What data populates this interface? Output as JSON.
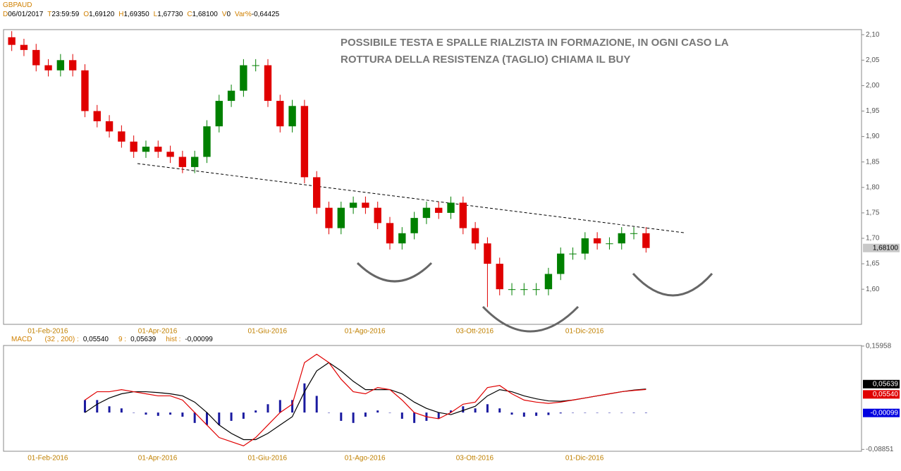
{
  "chart_data": [
    {
      "type": "candlestick",
      "title": "GBPAUD",
      "header": [
        {
          "key": "D",
          "value": "06/01/2017"
        },
        {
          "key": "T",
          "value": "23:59:59"
        },
        {
          "key": "O",
          "value": "1,69120"
        },
        {
          "key": "H",
          "value": "1,69350"
        },
        {
          "key": "L",
          "value": "1,67730"
        },
        {
          "key": "C",
          "value": "1,68100"
        },
        {
          "key": "V",
          "value": "0"
        },
        {
          "key": "Var%",
          "value": "-0,64425"
        }
      ],
      "annotation": [
        "POSSIBILE TESTA E SPALLE RIALZISTA IN FORMAZIONE, IN OGNI CASO LA",
        "ROTTURA DELLA RESISTENZA (TAGLIO) CHIAMA IL BUY"
      ],
      "categories": [
        null,
        null,
        null,
        null,
        "01-Feb-2016",
        null,
        null,
        null,
        null,
        null,
        null,
        null,
        null,
        "01-Apr-2016",
        null,
        null,
        null,
        null,
        null,
        null,
        null,
        null,
        "01-Giu-2016",
        null,
        null,
        null,
        null,
        null,
        null,
        null,
        "01-Ago-2016",
        null,
        null,
        null,
        null,
        null,
        null,
        null,
        null,
        "03-Ott-2016",
        null,
        null,
        null,
        null,
        null,
        null,
        null,
        null,
        "01-Dic-2016",
        null,
        null,
        null,
        null
      ],
      "open": [
        2.095,
        2.08,
        2.07,
        2.04,
        2.03,
        2.05,
        2.03,
        1.95,
        1.93,
        1.91,
        1.89,
        1.87,
        1.88,
        1.87,
        1.86,
        1.84,
        1.86,
        1.92,
        1.97,
        1.99,
        2.04,
        2.04,
        1.97,
        1.92,
        1.96,
        1.82,
        1.76,
        1.72,
        1.76,
        1.77,
        1.76,
        1.73,
        1.69,
        1.71,
        1.74,
        1.76,
        1.75,
        1.77,
        1.72,
        1.69,
        1.65,
        1.6,
        1.6,
        1.6,
        1.6,
        1.63,
        1.67,
        1.67,
        1.7,
        1.69,
        1.69,
        1.71,
        1.71
      ],
      "high": [
        2.107,
        2.092,
        2.082,
        2.052,
        2.062,
        2.062,
        2.042,
        1.962,
        1.942,
        1.922,
        1.902,
        1.892,
        1.892,
        1.882,
        1.872,
        1.872,
        1.932,
        1.982,
        2.002,
        2.052,
        2.052,
        2.052,
        1.982,
        1.972,
        1.972,
        1.832,
        1.772,
        1.772,
        1.782,
        1.782,
        1.772,
        1.742,
        1.722,
        1.752,
        1.772,
        1.772,
        1.782,
        1.782,
        1.732,
        1.702,
        1.662,
        1.612,
        1.612,
        1.612,
        1.642,
        1.682,
        1.682,
        1.712,
        1.712,
        1.702,
        1.722,
        1.722,
        1.722
      ],
      "low": [
        2.068,
        2.058,
        2.028,
        2.018,
        2.018,
        2.018,
        1.938,
        1.918,
        1.898,
        1.878,
        1.858,
        1.858,
        1.858,
        1.848,
        1.828,
        1.828,
        1.848,
        1.908,
        1.958,
        1.978,
        2.028,
        1.958,
        1.908,
        1.908,
        1.808,
        1.748,
        1.708,
        1.708,
        1.748,
        1.748,
        1.718,
        1.678,
        1.678,
        1.698,
        1.728,
        1.738,
        1.738,
        1.708,
        1.678,
        1.565,
        1.588,
        1.588,
        1.588,
        1.588,
        1.588,
        1.618,
        1.658,
        1.658,
        1.678,
        1.678,
        1.678,
        1.698,
        1.672
      ],
      "close": [
        2.08,
        2.07,
        2.04,
        2.03,
        2.05,
        2.03,
        1.95,
        1.93,
        1.91,
        1.89,
        1.87,
        1.88,
        1.87,
        1.86,
        1.84,
        1.86,
        1.92,
        1.97,
        1.99,
        2.04,
        2.04,
        1.97,
        1.92,
        1.96,
        1.82,
        1.76,
        1.72,
        1.76,
        1.77,
        1.76,
        1.73,
        1.69,
        1.71,
        1.74,
        1.76,
        1.75,
        1.77,
        1.72,
        1.69,
        1.65,
        1.6,
        1.6,
        1.6,
        1.6,
        1.63,
        1.67,
        1.67,
        1.7,
        1.69,
        1.69,
        1.71,
        1.71,
        1.681
      ],
      "close_labels": [
        null,
        null,
        null,
        null,
        null,
        null,
        null,
        null,
        null,
        null,
        null,
        null,
        null,
        null,
        null,
        null,
        null,
        null,
        null,
        null,
        null,
        null,
        null,
        null,
        null,
        null,
        null,
        null,
        null,
        null,
        null,
        null,
        null,
        null,
        null,
        null,
        null,
        null,
        null,
        null,
        null,
        null,
        null,
        null,
        null,
        null,
        null,
        null,
        null,
        null,
        null,
        null,
        "1,68100"
      ],
      "up_color": "#008000",
      "down_color": "#e00000",
      "ylim": [
        1.531,
        2.11
      ],
      "yticks": [
        {
          "value": 1.6,
          "label": "1,60"
        },
        {
          "value": 1.65,
          "label": "1,65"
        },
        {
          "value": 1.7,
          "label": "1,70"
        },
        {
          "value": 1.75,
          "label": "1,75"
        },
        {
          "value": 1.8,
          "label": "1,80"
        },
        {
          "value": 1.85,
          "label": "1,85"
        },
        {
          "value": 1.9,
          "label": "1,90"
        },
        {
          "value": 1.95,
          "label": "1,95"
        },
        {
          "value": 2.0,
          "label": "2,00"
        },
        {
          "value": 2.05,
          "label": "2,05"
        },
        {
          "value": 2.1,
          "label": "2,10"
        }
      ]
    },
    {
      "type": "line",
      "title": "MACD",
      "header": [
        "(32 , 200) :",
        "0,05540",
        "9 :",
        "0,05639",
        "hist :",
        "-0,00099"
      ],
      "categories": [
        null,
        null,
        null,
        null,
        "01-Feb-2016",
        null,
        null,
        null,
        null,
        null,
        null,
        null,
        null,
        "01-Apr-2016",
        null,
        null,
        null,
        null,
        null,
        null,
        null,
        null,
        "01-Giu-2016",
        null,
        null,
        null,
        null,
        null,
        null,
        null,
        "01-Ago-2016",
        null,
        null,
        null,
        null,
        null,
        null,
        null,
        null,
        "03-Ott-2016",
        null,
        null,
        null,
        null,
        null,
        null,
        null,
        null,
        "01-Dic-2016",
        null,
        null,
        null,
        null
      ],
      "series": [
        {
          "kind": "bar",
          "color": "#1a1aa0",
          "label_bg": "#0000e0",
          "values": [
            null,
            null,
            null,
            null,
            null,
            null,
            0.03,
            0.03,
            0.015,
            0.01,
            0,
            -0.005,
            -0.008,
            -0.005,
            -0.01,
            -0.025,
            -0.03,
            -0.03,
            -0.02,
            -0.015,
            0.005,
            0.02,
            0.03,
            0.03,
            0.07,
            0.04,
            0,
            -0.02,
            -0.025,
            -0.01,
            0.005,
            0,
            -0.015,
            -0.025,
            -0.02,
            -0.015,
            0.005,
            0.015,
            0.01,
            0.02,
            0.01,
            -0.005,
            -0.01,
            -0.008,
            -0.006,
            -0.002,
            0,
            0,
            0,
            0,
            0,
            -0.001,
            -0.00099
          ],
          "value_labels": [
            null,
            null,
            null,
            null,
            null,
            null,
            null,
            null,
            null,
            null,
            null,
            null,
            null,
            null,
            null,
            null,
            null,
            null,
            null,
            null,
            null,
            null,
            null,
            null,
            null,
            null,
            null,
            null,
            null,
            null,
            null,
            null,
            null,
            null,
            null,
            null,
            null,
            null,
            null,
            null,
            null,
            null,
            null,
            null,
            null,
            null,
            null,
            null,
            null,
            null,
            null,
            null,
            "-0,00099"
          ]
        },
        {
          "kind": "line",
          "color": "#000000",
          "label_bg": "#000000",
          "values": [
            null,
            null,
            null,
            null,
            null,
            null,
            0,
            0.02,
            0.035,
            0.045,
            0.05,
            0.05,
            0.048,
            0.045,
            0.04,
            0.025,
            0,
            -0.03,
            -0.05,
            -0.065,
            -0.065,
            -0.05,
            -0.03,
            -0.01,
            0.05,
            0.1,
            0.12,
            0.1,
            0.075,
            0.055,
            0.055,
            0.055,
            0.045,
            0.025,
            0.01,
            0,
            -0.005,
            0.005,
            0.015,
            0.04,
            0.055,
            0.05,
            0.04,
            0.033,
            0.028,
            0.027,
            0.03,
            0.035,
            0.04,
            0.045,
            0.05,
            0.054,
            0.05639
          ],
          "value_labels": [
            null,
            null,
            null,
            null,
            null,
            null,
            null,
            null,
            null,
            null,
            null,
            null,
            null,
            null,
            null,
            null,
            null,
            null,
            null,
            null,
            null,
            null,
            null,
            null,
            null,
            null,
            null,
            null,
            null,
            null,
            null,
            null,
            null,
            null,
            null,
            null,
            null,
            null,
            null,
            null,
            null,
            null,
            null,
            null,
            null,
            null,
            null,
            null,
            null,
            null,
            null,
            null,
            "0,05639"
          ]
        },
        {
          "kind": "line",
          "color": "#e00000",
          "label_bg": "#e00000",
          "values": [
            null,
            null,
            null,
            null,
            null,
            null,
            0.03,
            0.05,
            0.05,
            0.055,
            0.05,
            0.045,
            0.04,
            0.04,
            0.03,
            0,
            -0.03,
            -0.06,
            -0.07,
            -0.08,
            -0.06,
            -0.03,
            0,
            0.02,
            0.12,
            0.14,
            0.12,
            0.08,
            0.05,
            0.045,
            0.06,
            0.055,
            0.03,
            0,
            -0.01,
            -0.015,
            0,
            0.02,
            0.025,
            0.06,
            0.065,
            0.045,
            0.03,
            0.025,
            0.022,
            0.025,
            0.03,
            0.035,
            0.04,
            0.045,
            0.05,
            0.053,
            0.0554
          ],
          "value_labels": [
            null,
            null,
            null,
            null,
            null,
            null,
            null,
            null,
            null,
            null,
            null,
            null,
            null,
            null,
            null,
            null,
            null,
            null,
            null,
            null,
            null,
            null,
            null,
            null,
            null,
            null,
            null,
            null,
            null,
            null,
            null,
            null,
            null,
            null,
            null,
            null,
            null,
            null,
            null,
            null,
            null,
            null,
            null,
            null,
            null,
            null,
            null,
            null,
            null,
            null,
            null,
            null,
            "0,05540"
          ]
        }
      ],
      "ylim": [
        -0.093,
        0.161
      ],
      "yticks": [
        {
          "value": 0.15958,
          "label": "0,15958"
        },
        {
          "value": -0.08851,
          "label": "-0,08851"
        }
      ]
    }
  ]
}
